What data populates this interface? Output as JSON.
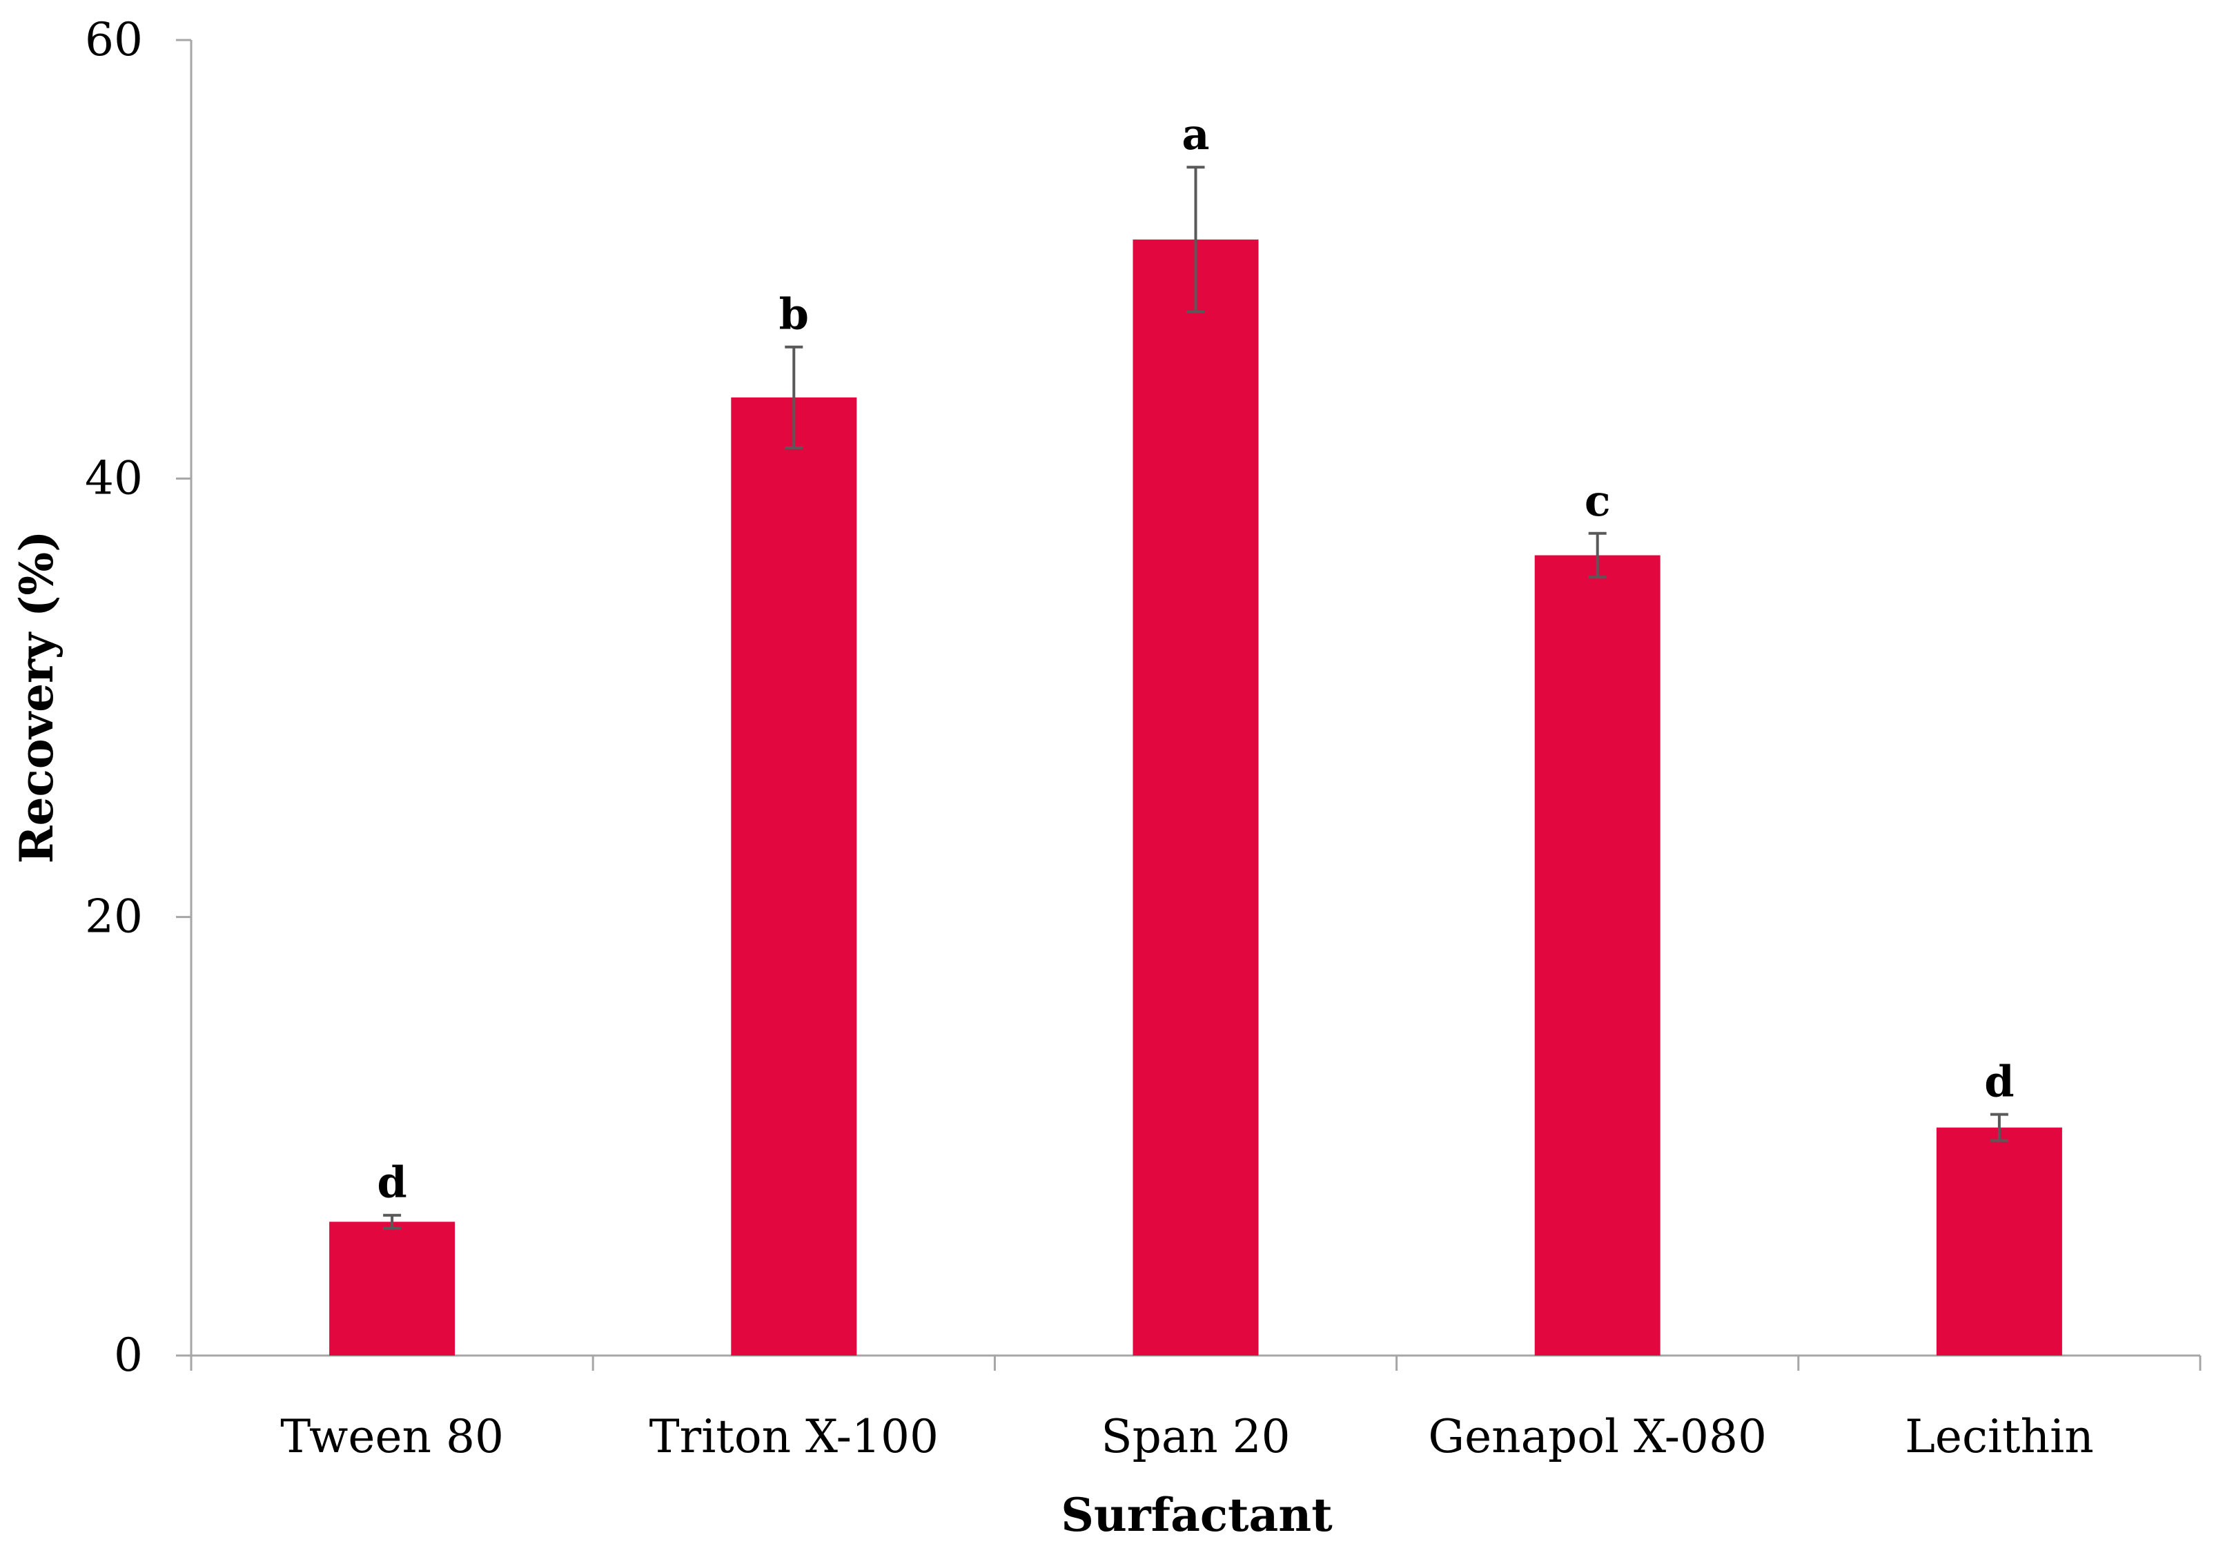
{
  "chart_data": {
    "type": "bar",
    "title": "",
    "xlabel": "Surfactant",
    "ylabel": "Recovery (%)",
    "ylim": [
      0,
      60
    ],
    "yticks": [
      0,
      20,
      40,
      60
    ],
    "grid": false,
    "categories": [
      "Tween 80",
      "Triton X-100",
      "Span 20",
      "Genapol X-080",
      "Lecithin"
    ],
    "values": [
      6.1,
      43.7,
      50.9,
      36.5,
      10.4
    ],
    "errors": [
      0.3,
      2.3,
      3.3,
      1.0,
      0.6
    ],
    "significance_letters": [
      "d",
      "b",
      "a",
      "c",
      "d"
    ],
    "bar_color": "#e3073f",
    "errorbar_color": "#595959",
    "axis_color": "#a6a6a6"
  }
}
